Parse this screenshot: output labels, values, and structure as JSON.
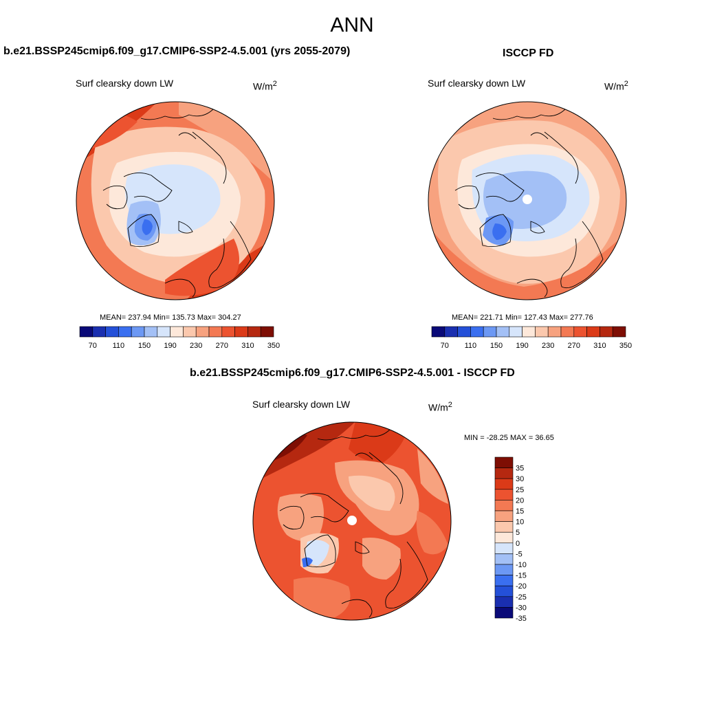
{
  "header": {
    "season": "ANN"
  },
  "panels": {
    "model": {
      "title": "b.e21.BSSP245cmip6.f09_g17.CMIP6-SSP2-4.5.001 (yrs 2055-2079)",
      "variable": "Surf clearsky down LW",
      "units_base": "W/m",
      "units_exp": "2",
      "stats": "MEAN= 237.94  Min= 135.73  Max= 304.27",
      "colorbar_labels": [
        "70",
        "110",
        "150",
        "190",
        "230",
        "270",
        "310",
        "350"
      ]
    },
    "obs": {
      "title": "ISCCP FD",
      "variable": "Surf clearsky down LW",
      "units_base": "W/m",
      "units_exp": "2",
      "stats": "MEAN= 221.71  Min= 127.43  Max= 277.76",
      "colorbar_labels": [
        "70",
        "110",
        "150",
        "190",
        "230",
        "270",
        "310",
        "350"
      ]
    },
    "diff": {
      "title": "b.e21.BSSP245cmip6.f09_g17.CMIP6-SSP2-4.5.001 - ISCCP FD",
      "variable": "Surf clearsky down LW",
      "units_base": "W/m",
      "units_exp": "2",
      "stats": "MIN = -28.25 MAX =  36.65",
      "colorbar_labels": [
        "35",
        "30",
        "25",
        "20",
        "15",
        "10",
        "5",
        "0",
        "-5",
        "-10",
        "-15",
        "-20",
        "-25",
        "-30",
        "-35"
      ]
    }
  },
  "colors": {
    "abs_scale": [
      "#0a0a78",
      "#1a2fb0",
      "#2450d8",
      "#3a6ff0",
      "#6c98f4",
      "#a3c0f6",
      "#d6e5fb",
      "#fde8da",
      "#fbc8ad",
      "#f7a27f",
      "#f37953",
      "#ec5330",
      "#db3a18",
      "#b52810",
      "#7e0e04"
    ],
    "diff_scale": [
      "#7e0e04",
      "#b52810",
      "#db3a18",
      "#ec5330",
      "#f37953",
      "#f7a27f",
      "#fbc8ad",
      "#fde8da",
      "#d6e5fb",
      "#a3c0f6",
      "#6c98f4",
      "#3a6ff0",
      "#2450d8",
      "#1a2fb0",
      "#0a0a78"
    ]
  }
}
